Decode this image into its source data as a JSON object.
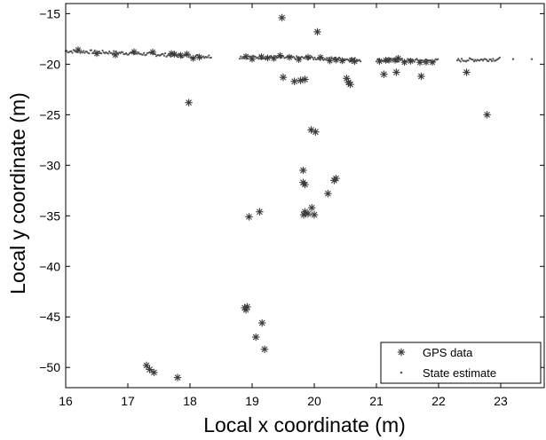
{
  "chart_data": {
    "type": "scatter",
    "xlabel": "Local x coordinate (m)",
    "ylabel": "Local y coordinate (m)",
    "xlim": [
      16,
      23.7
    ],
    "ylim": [
      -52,
      -14
    ],
    "xticks": [
      16,
      17,
      18,
      19,
      20,
      21,
      22,
      23
    ],
    "yticks": [
      -15,
      -20,
      -25,
      -30,
      -35,
      -40,
      -45,
      -50
    ],
    "grid": false,
    "legend_position": "bottom-right",
    "series": [
      {
        "name": "GPS data",
        "marker": "asterisk",
        "color": "#3a3a3a",
        "points": [
          [
            19.48,
            -15.4
          ],
          [
            20.05,
            -16.8
          ],
          [
            21.32,
            -20.8
          ],
          [
            21.12,
            -21.0
          ],
          [
            21.72,
            -21.2
          ],
          [
            19.5,
            -21.3
          ],
          [
            19.68,
            -21.7
          ],
          [
            19.78,
            -21.6
          ],
          [
            19.85,
            -21.5
          ],
          [
            20.52,
            -21.4
          ],
          [
            20.55,
            -21.8
          ],
          [
            20.58,
            -22.0
          ],
          [
            22.45,
            -20.8
          ],
          [
            17.98,
            -23.8
          ],
          [
            22.78,
            -25.0
          ],
          [
            19.95,
            -26.5
          ],
          [
            20.02,
            -26.7
          ],
          [
            19.82,
            -30.5
          ],
          [
            19.82,
            -31.7
          ],
          [
            19.85,
            -31.9
          ],
          [
            20.35,
            -31.3
          ],
          [
            20.32,
            -31.5
          ],
          [
            20.22,
            -32.8
          ],
          [
            19.85,
            -34.6
          ],
          [
            19.9,
            -34.8
          ],
          [
            19.96,
            -34.2
          ],
          [
            20.0,
            -34.9
          ],
          [
            19.83,
            -34.9
          ],
          [
            18.95,
            -35.1
          ],
          [
            19.12,
            -34.6
          ],
          [
            18.88,
            -44.1
          ],
          [
            18.92,
            -44.0
          ],
          [
            18.9,
            -44.3
          ],
          [
            19.16,
            -45.6
          ],
          [
            19.06,
            -47.0
          ],
          [
            19.2,
            -48.2
          ],
          [
            17.3,
            -49.8
          ],
          [
            17.35,
            -50.2
          ],
          [
            17.42,
            -50.5
          ],
          [
            17.8,
            -51.0
          ]
        ]
      },
      {
        "name": "State estimate",
        "marker": "dot",
        "color": "#555555",
        "trend": [
          [
            16.0,
            -18.7
          ],
          [
            17.0,
            -18.9
          ],
          [
            18.0,
            -19.2
          ],
          [
            19.0,
            -19.3
          ],
          [
            20.0,
            -19.4
          ],
          [
            21.0,
            -19.6
          ],
          [
            22.0,
            -19.65
          ],
          [
            23.0,
            -19.5
          ],
          [
            23.5,
            -19.45
          ]
        ],
        "density_ranges": [
          [
            16.0,
            18.35
          ],
          [
            18.8,
            20.75
          ],
          [
            21.0,
            22.0
          ],
          [
            22.3,
            23.0
          ]
        ],
        "extra_points": [
          [
            23.2,
            -19.5
          ],
          [
            23.5,
            -19.5
          ]
        ]
      }
    ]
  }
}
